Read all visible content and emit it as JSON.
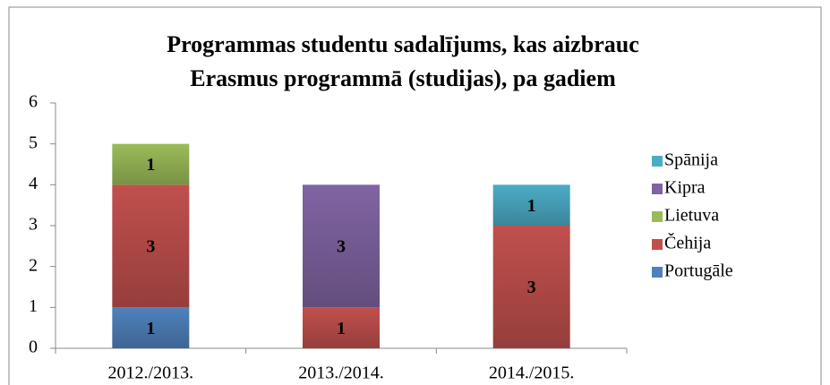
{
  "chart_data": {
    "type": "stacked_bar",
    "title": [
      "Programmas studentu sadalījums, kas aizbrauc",
      "Erasmus programmā (studijas), pa gadiem"
    ],
    "categories": [
      "2012./2013.",
      "2013./2014.",
      "2014./2015."
    ],
    "series": [
      {
        "name": "Portugāle",
        "color": "#4f81bd",
        "values": [
          1,
          0,
          0
        ]
      },
      {
        "name": "Čehija",
        "color": "#c0504d",
        "values": [
          3,
          1,
          3
        ]
      },
      {
        "name": "Lietuva",
        "color": "#9bbb59",
        "values": [
          1,
          0,
          0
        ]
      },
      {
        "name": "Kipra",
        "color": "#8064a2",
        "values": [
          0,
          3,
          0
        ]
      },
      {
        "name": "Spānija",
        "color": "#4bacc6",
        "values": [
          0,
          0,
          1
        ]
      }
    ],
    "ylim": [
      0,
      6
    ],
    "yticks": [
      0,
      1,
      2,
      3,
      4,
      5,
      6
    ],
    "grid": false,
    "legend": "right"
  }
}
